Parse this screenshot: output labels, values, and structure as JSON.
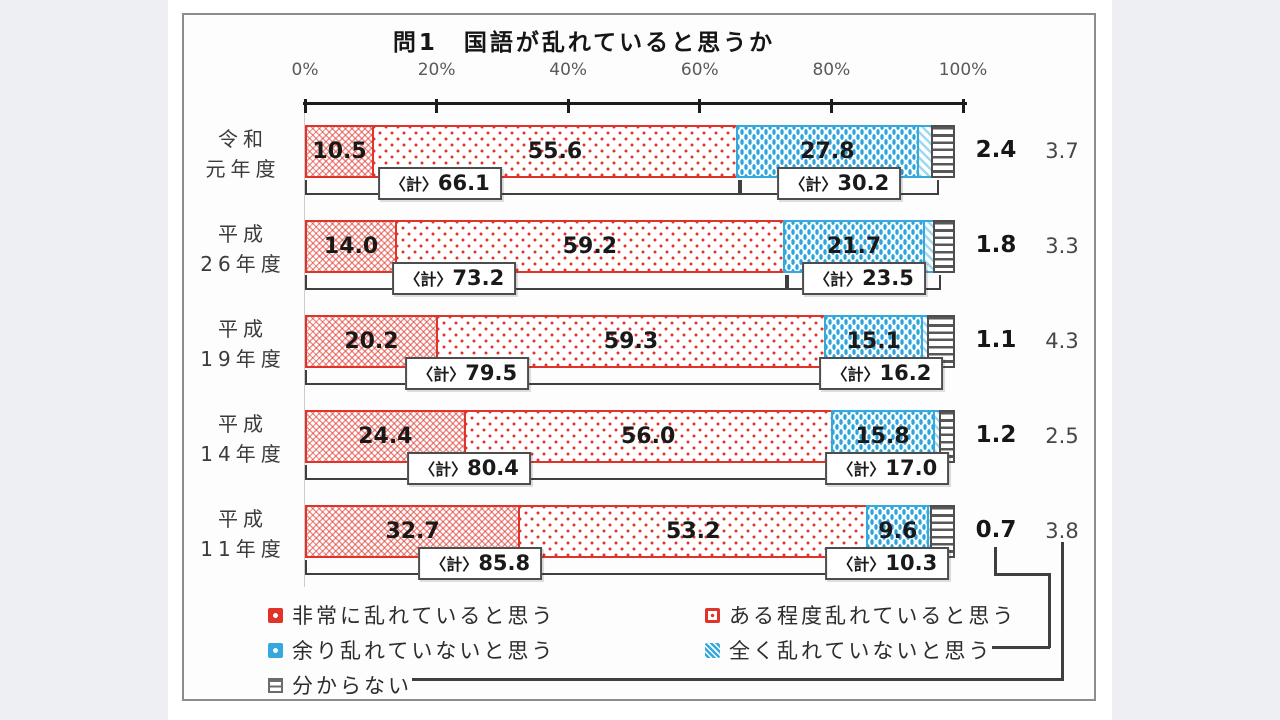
{
  "title": "問1　国語が乱れていると思うか",
  "axis": {
    "ticks": [
      "0%",
      "20%",
      "40%",
      "60%",
      "80%",
      "100%"
    ]
  },
  "total_prefix": "〈計〉",
  "colors": {
    "red": "#e0342b",
    "blue": "#35a8dd",
    "gray_border": "#4e4e4e",
    "bracket": "#3f3f3f"
  },
  "rows": [
    {
      "label_lines": [
        "令和",
        "元年度"
      ],
      "values": [
        "10.5",
        "55.6",
        "27.8",
        "2.4",
        "3.7"
      ],
      "nums": [
        10.5,
        55.6,
        27.8,
        2.4,
        3.7
      ],
      "red_total": "66.1",
      "blue_total": "30.2"
    },
    {
      "label_lines": [
        "平成",
        "26年度"
      ],
      "values": [
        "14.0",
        "59.2",
        "21.7",
        "1.8",
        "3.3"
      ],
      "nums": [
        14.0,
        59.2,
        21.7,
        1.8,
        3.3
      ],
      "red_total": "73.2",
      "blue_total": "23.5"
    },
    {
      "label_lines": [
        "平成",
        "19年度"
      ],
      "values": [
        "20.2",
        "59.3",
        "15.1",
        "1.1",
        "4.3"
      ],
      "nums": [
        20.2,
        59.3,
        15.1,
        1.1,
        4.3
      ],
      "red_total": "79.5",
      "blue_total": "16.2"
    },
    {
      "label_lines": [
        "平成",
        "14年度"
      ],
      "values": [
        "24.4",
        "56.0",
        "15.8",
        "1.2",
        "2.5"
      ],
      "nums": [
        24.4,
        56.0,
        15.8,
        1.2,
        2.5
      ],
      "red_total": "80.4",
      "blue_total": "17.0"
    },
    {
      "label_lines": [
        "平成",
        "11年度"
      ],
      "values": [
        "32.7",
        "53.2",
        "9.6",
        "0.7",
        "3.8"
      ],
      "nums": [
        32.7,
        53.2,
        9.6,
        0.7,
        3.8
      ],
      "red_total": "85.8",
      "blue_total": "10.3"
    }
  ],
  "legend": {
    "items": [
      {
        "label": "非常に乱れていると思う"
      },
      {
        "label": "ある程度乱れていると思う"
      },
      {
        "label": "余り乱れていないと思う"
      },
      {
        "label": "全く乱れていないと思う"
      },
      {
        "label": "分からない"
      }
    ]
  },
  "chart_data": {
    "type": "bar",
    "stacked": true,
    "orientation": "horizontal",
    "title": "問1　国語が乱れていると思うか",
    "unit": "%",
    "categories": [
      "令和元年度",
      "平成26年度",
      "平成19年度",
      "平成14年度",
      "平成11年度"
    ],
    "series": [
      {
        "name": "非常に乱れていると思う",
        "values": [
          10.5,
          14.0,
          20.2,
          24.4,
          32.7
        ]
      },
      {
        "name": "ある程度乱れていると思う",
        "values": [
          55.6,
          59.2,
          59.3,
          56.0,
          53.2
        ]
      },
      {
        "name": "余り乱れていないと思う",
        "values": [
          27.8,
          21.7,
          15.1,
          15.8,
          9.6
        ]
      },
      {
        "name": "全く乱れていないと思う",
        "values": [
          2.4,
          1.8,
          1.1,
          1.2,
          0.7
        ]
      },
      {
        "name": "分からない",
        "values": [
          3.7,
          3.3,
          4.3,
          2.5,
          3.8
        ]
      }
    ],
    "group_totals": {
      "disordered_sum": {
        "label": "〈計〉",
        "values": [
          66.1,
          73.2,
          79.5,
          80.4,
          85.8
        ]
      },
      "not_disordered_sum": {
        "label": "〈計〉",
        "values": [
          30.2,
          23.5,
          16.2,
          17.0,
          10.3
        ]
      }
    },
    "xlim": [
      0,
      100
    ],
    "x_ticks": [
      "0%",
      "20%",
      "40%",
      "60%",
      "80%",
      "100%"
    ],
    "grid": false,
    "legend_position": "bottom"
  }
}
